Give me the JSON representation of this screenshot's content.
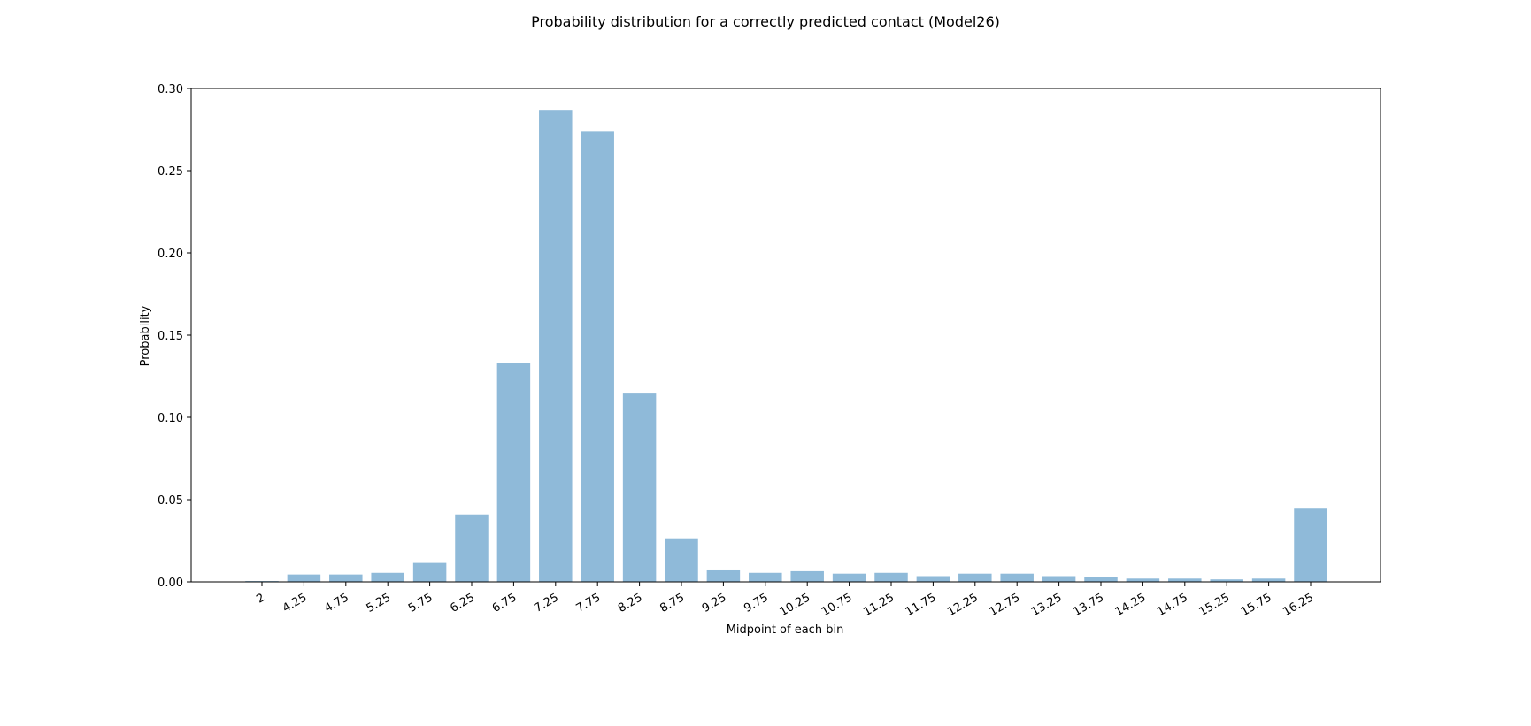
{
  "chart_data": {
    "type": "bar",
    "title": "Probability distribution for a correctly predicted contact (Model26)",
    "xlabel": "Midpoint of each bin",
    "ylabel": "Probability",
    "categories": [
      "2",
      "4.25",
      "4.75",
      "5.25",
      "5.75",
      "6.25",
      "6.75",
      "7.25",
      "7.75",
      "8.25",
      "8.75",
      "9.25",
      "9.75",
      "10.25",
      "10.75",
      "11.25",
      "11.75",
      "12.25",
      "12.75",
      "13.25",
      "13.75",
      "14.25",
      "14.75",
      "15.25",
      "15.75",
      "16.25"
    ],
    "values": [
      0.0005,
      0.0045,
      0.0045,
      0.0055,
      0.0115,
      0.041,
      0.133,
      0.287,
      0.274,
      0.115,
      0.0265,
      0.007,
      0.0055,
      0.0065,
      0.005,
      0.0055,
      0.0035,
      0.005,
      0.005,
      0.0035,
      0.003,
      0.002,
      0.002,
      0.0015,
      0.002,
      0.0445
    ],
    "ylim": [
      0,
      0.3
    ],
    "yticks": [
      "0.00",
      "0.05",
      "0.10",
      "0.15",
      "0.20",
      "0.25",
      "0.30"
    ],
    "bar_color": "#8fbad9",
    "grid": false,
    "legend": "none"
  }
}
